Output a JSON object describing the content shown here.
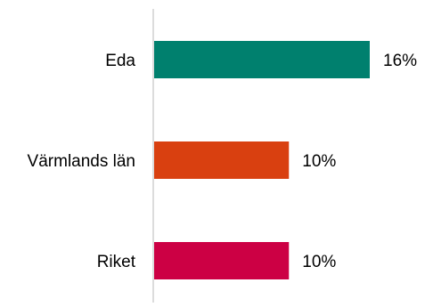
{
  "chart_data": {
    "type": "bar",
    "orientation": "horizontal",
    "categories": [
      "Eda",
      "Värmlands län",
      "Riket"
    ],
    "values": [
      16,
      10,
      10
    ],
    "value_labels": [
      "16%",
      "10%",
      "10%"
    ],
    "colors": [
      "#00806e",
      "#d94010",
      "#cc0044"
    ],
    "axis_color": "#d0d0d0",
    "xlim": [
      0,
      25
    ],
    "grid": false,
    "legend": "none"
  }
}
